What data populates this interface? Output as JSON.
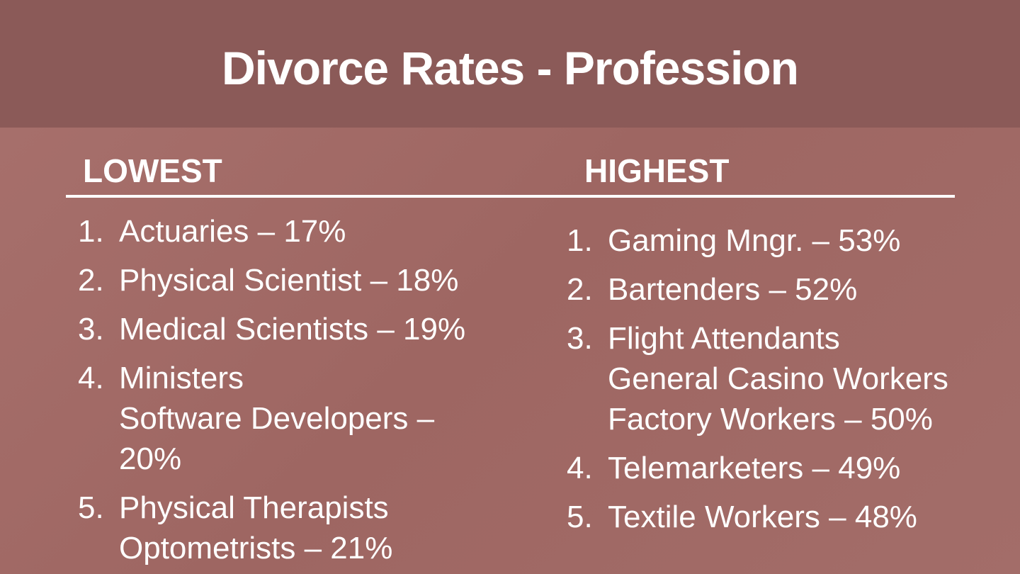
{
  "title": "Divorce Rates - Profession",
  "columns": [
    {
      "heading": "LOWEST",
      "items": [
        {
          "number": "1.",
          "lines": [
            "Actuaries – 17%"
          ]
        },
        {
          "number": "2.",
          "lines": [
            "Physical Scientist – 18%"
          ]
        },
        {
          "number": "3.",
          "lines": [
            "Medical Scientists – 19%"
          ]
        },
        {
          "number": "4.",
          "lines": [
            "Ministers",
            "Software Developers –",
            "20%"
          ]
        },
        {
          "number": "5.",
          "lines": [
            "Physical Therapists",
            "Optometrists – 21%"
          ]
        }
      ]
    },
    {
      "heading": "HIGHEST",
      "items": [
        {
          "number": "1.",
          "lines": [
            "Gaming Mngr. – 53%"
          ]
        },
        {
          "number": "2.",
          "lines": [
            "Bartenders – 52%"
          ]
        },
        {
          "number": "3.",
          "lines": [
            "Flight Attendants",
            "General Casino Workers",
            "Factory Workers – 50%"
          ]
        },
        {
          "number": "4.",
          "lines": [
            "Telemarketers – 49%"
          ]
        },
        {
          "number": "5.",
          "lines": [
            "Textile Workers – 48%"
          ]
        }
      ]
    }
  ]
}
